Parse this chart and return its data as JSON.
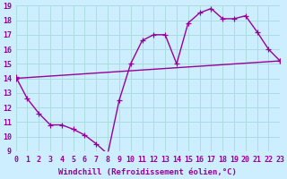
{
  "xlabel": "Windchill (Refroidissement éolien,°C)",
  "bg_color": "#cceeff",
  "line_color": "#990099",
  "grid_color": "#aadddd",
  "xlim": [
    0,
    23
  ],
  "ylim": [
    9,
    19
  ],
  "xticks": [
    0,
    1,
    2,
    3,
    4,
    5,
    6,
    7,
    8,
    9,
    10,
    11,
    12,
    13,
    14,
    15,
    16,
    17,
    18,
    19,
    20,
    21,
    22,
    23
  ],
  "yticks": [
    9,
    10,
    11,
    12,
    13,
    14,
    15,
    16,
    17,
    18,
    19
  ],
  "line1_x": [
    0,
    1,
    2,
    3,
    4,
    5,
    6,
    7,
    8,
    9,
    10,
    11,
    12,
    13,
    14,
    15,
    16,
    17,
    18,
    19,
    20,
    21,
    22,
    23
  ],
  "line1_y": [
    14.1,
    12.6,
    11.6,
    10.8,
    10.8,
    10.5,
    10.1,
    9.5,
    8.8,
    12.5,
    15.0,
    16.6,
    17.0,
    17.0,
    15.0,
    17.8,
    18.5,
    18.8,
    18.1,
    18.1,
    18.3,
    17.2,
    16.0,
    15.2
  ],
  "line2_x": [
    0,
    23
  ],
  "line2_y": [
    14.0,
    15.2
  ],
  "marker": "+",
  "markersize": 5,
  "linewidth": 1.0,
  "fontsize_label": 6.5,
  "fontsize_tick": 6.0
}
